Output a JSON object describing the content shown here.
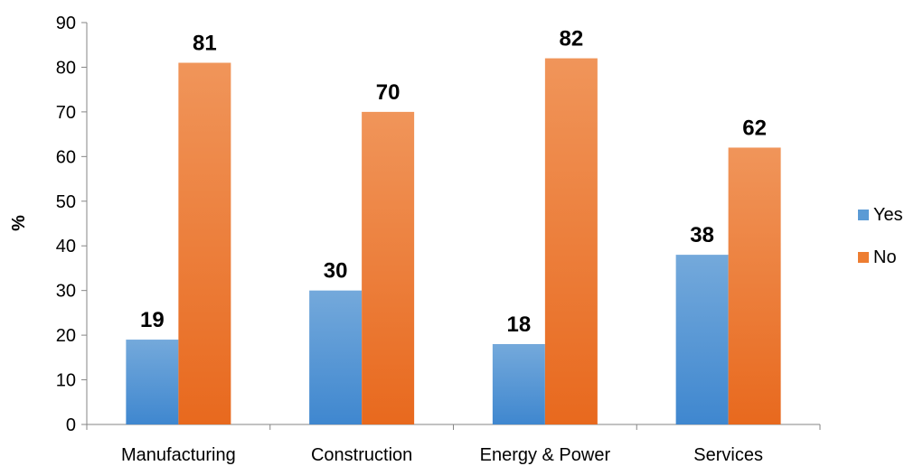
{
  "chart_data": {
    "type": "bar",
    "categories": [
      "Manufacturing",
      "Construction",
      "Energy & Power",
      "Services"
    ],
    "series": [
      {
        "name": "Yes",
        "values": [
          19,
          30,
          18,
          38
        ]
      },
      {
        "name": "No",
        "values": [
          81,
          70,
          82,
          62
        ]
      }
    ],
    "title": "",
    "xlabel": "",
    "ylabel": "%",
    "ylim": [
      0,
      90
    ],
    "yticks": [
      0,
      10,
      20,
      30,
      40,
      50,
      60,
      70,
      80,
      90
    ],
    "grid": false,
    "legend": "right",
    "colors": {
      "Yes": "#5b9bd5",
      "No": "#ed7d31"
    }
  }
}
